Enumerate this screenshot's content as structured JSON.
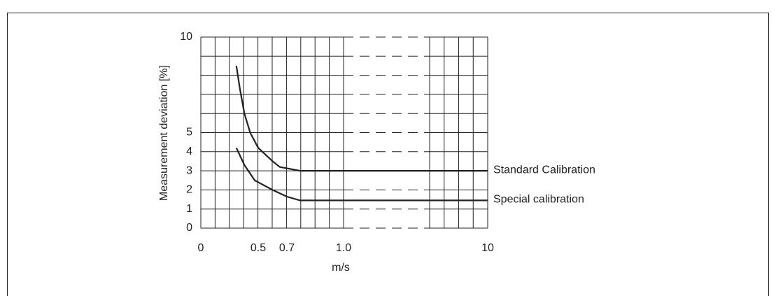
{
  "chart_data": {
    "type": "line",
    "xlabel": "m/s",
    "ylabel": "Measurement deviation [%]",
    "xlim": [
      0,
      10
    ],
    "ylim": [
      0,
      10
    ],
    "xticks": [
      0,
      0.5,
      0.7,
      {
        "value": 1,
        "label": "1.0"
      },
      10
    ],
    "yticks": [
      0,
      1,
      2,
      3,
      4,
      5,
      10
    ],
    "ygrid": [
      0,
      1,
      2,
      3,
      4,
      5,
      6,
      7,
      8,
      9,
      10
    ],
    "series": [
      {
        "name": "Standard Calibration",
        "color": "#222222",
        "x": [
          0.31,
          0.34,
          0.38,
          0.43,
          0.5,
          0.6,
          0.65,
          0.77,
          10
        ],
        "values": [
          8.5,
          7.3,
          6.0,
          5.0,
          4.2,
          3.5,
          3.2,
          3,
          3
        ]
      },
      {
        "name": "Special calibration",
        "color": "#222222",
        "x": [
          0.31,
          0.38,
          0.47,
          0.6,
          0.7,
          0.77,
          10
        ],
        "values": [
          4.2,
          3.3,
          2.5,
          2.0,
          1.65,
          1.45,
          1.45
        ]
      }
    ]
  }
}
